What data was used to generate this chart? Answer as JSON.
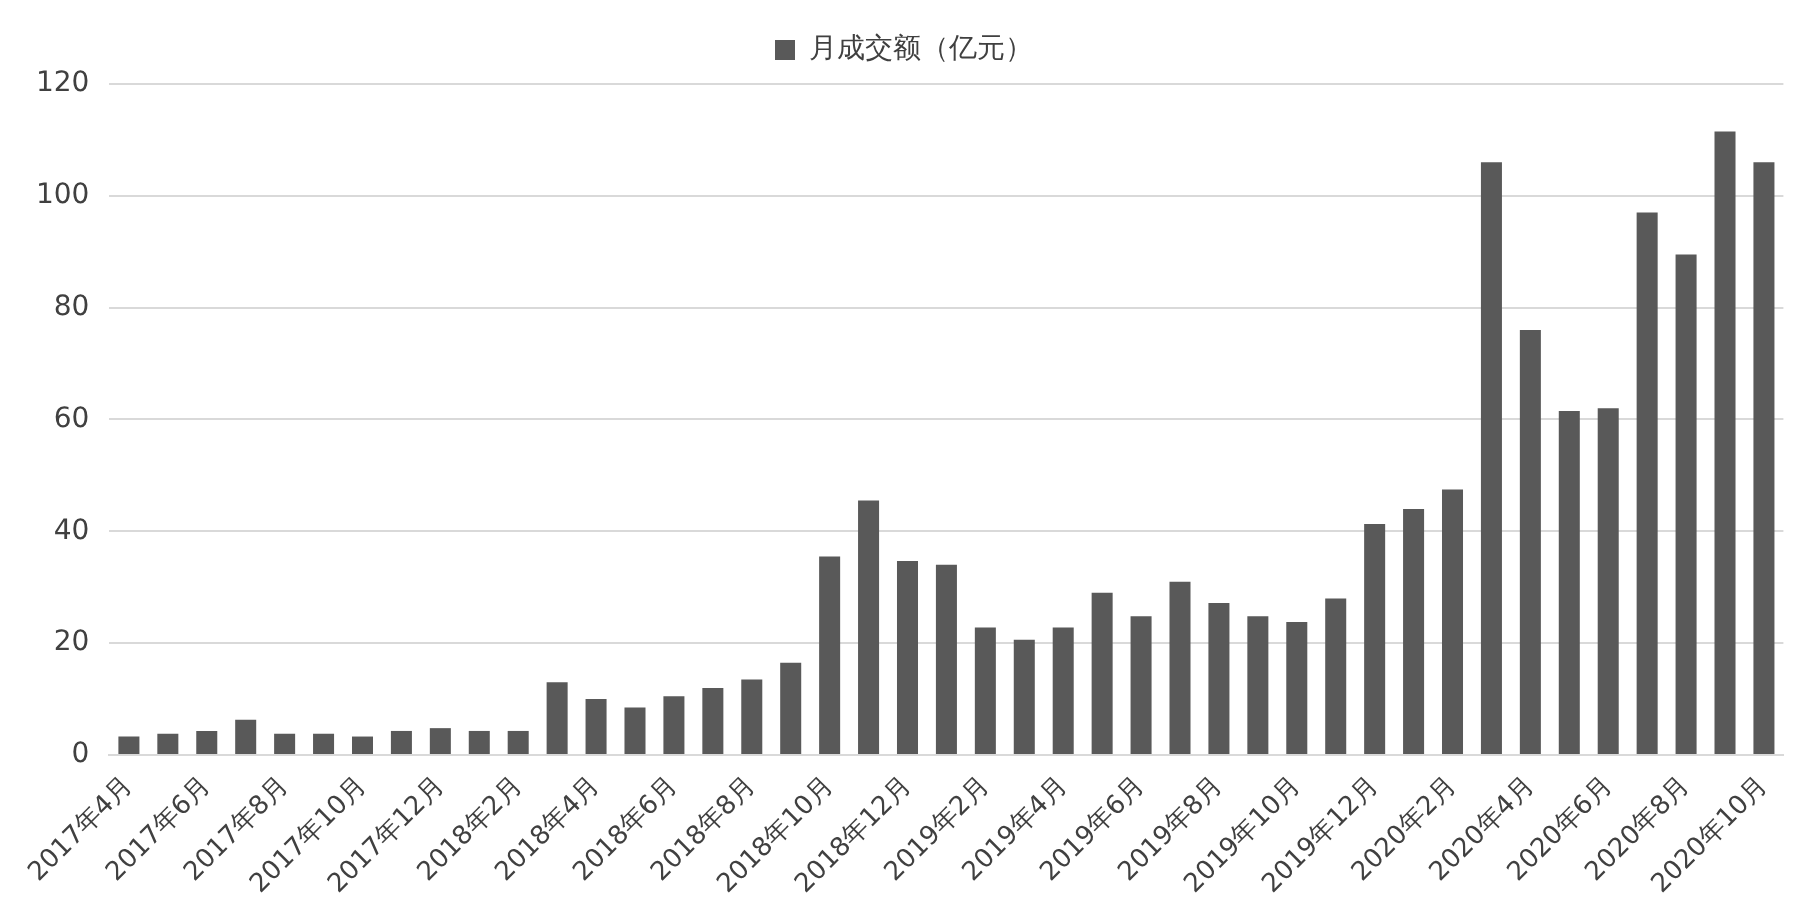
{
  "chart_data": {
    "type": "bar",
    "categories": [
      "2017年4月",
      null,
      "2017年6月",
      null,
      "2017年8月",
      null,
      "2017年10月",
      null,
      "2017年12月",
      null,
      "2018年2月",
      null,
      "2018年4月",
      null,
      "2018年6月",
      null,
      "2018年8月",
      null,
      "2018年10月",
      null,
      "2018年12月",
      null,
      "2019年2月",
      null,
      "2019年4月",
      null,
      "2019年6月",
      null,
      "2019年8月",
      null,
      "2019年10月",
      null,
      "2019年12月",
      null,
      "2020年2月",
      null,
      "2020年4月",
      null,
      "2020年6月",
      null,
      "2020年8月",
      null,
      "2020年10月"
    ],
    "series": [
      {
        "name": "月成交额（亿元）",
        "color": "#595959",
        "values": [
          3.3,
          3.8,
          4.3,
          6.3,
          3.8,
          3.8,
          3.3,
          4.3,
          4.8,
          4.3,
          4.3,
          13,
          10,
          8.5,
          10.5,
          12,
          13.5,
          16.5,
          35.5,
          45.5,
          34.7,
          34,
          22.8,
          20.6,
          22.8,
          29,
          24.8,
          31,
          27.2,
          24.8,
          23.8,
          28,
          41.3,
          44,
          47.5,
          106,
          76,
          61.5,
          62,
          97,
          89.5,
          111.5,
          106
        ]
      }
    ],
    "ylim": [
      0,
      120
    ],
    "yticks": [
      0,
      20,
      40,
      60,
      80,
      100,
      120
    ],
    "grid": "y",
    "legend": "top"
  }
}
